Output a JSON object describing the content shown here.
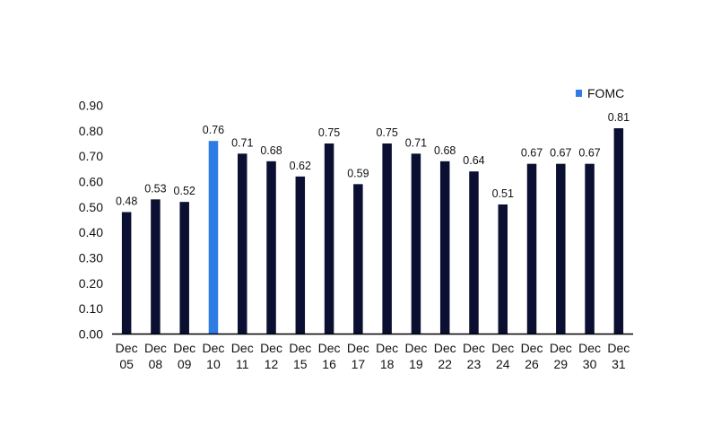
{
  "chart_data": {
    "type": "bar",
    "title": "",
    "xlabel": "",
    "ylabel": "",
    "ylim": [
      0,
      0.9
    ],
    "yticks": [
      0.0,
      0.1,
      0.2,
      0.3,
      0.4,
      0.5,
      0.6,
      0.7,
      0.8,
      0.9
    ],
    "ytick_labels": [
      "0.00",
      "0.10",
      "0.20",
      "0.30",
      "0.40",
      "0.50",
      "0.60",
      "0.70",
      "0.80",
      "0.90"
    ],
    "grid": false,
    "legend_position": "top-right",
    "categories": [
      [
        "Dec",
        "05"
      ],
      [
        "Dec",
        "08"
      ],
      [
        "Dec",
        "09"
      ],
      [
        "Dec",
        "10"
      ],
      [
        "Dec",
        "11"
      ],
      [
        "Dec",
        "12"
      ],
      [
        "Dec",
        "15"
      ],
      [
        "Dec",
        "16"
      ],
      [
        "Dec",
        "17"
      ],
      [
        "Dec",
        "18"
      ],
      [
        "Dec",
        "19"
      ],
      [
        "Dec",
        "22"
      ],
      [
        "Dec",
        "23"
      ],
      [
        "Dec",
        "24"
      ],
      [
        "Dec",
        "26"
      ],
      [
        "Dec",
        "29"
      ],
      [
        "Dec",
        "30"
      ],
      [
        "Dec",
        "31"
      ]
    ],
    "values": [
      0.48,
      0.53,
      0.52,
      0.76,
      0.71,
      0.68,
      0.62,
      0.75,
      0.59,
      0.75,
      0.71,
      0.68,
      0.64,
      0.51,
      0.67,
      0.67,
      0.67,
      0.81
    ],
    "value_labels": [
      "0.48",
      "0.53",
      "0.52",
      "0.76",
      "0.71",
      "0.68",
      "0.62",
      "0.75",
      "0.59",
      "0.75",
      "0.71",
      "0.68",
      "0.64",
      "0.51",
      "0.67",
      "0.67",
      "0.67",
      "0.81"
    ],
    "highlight_index": 3,
    "legend": [
      {
        "label": "FOMC",
        "color": "#2f7be5"
      }
    ],
    "colors": {
      "bar": "#0b1033",
      "highlight": "#2f7be5",
      "axis": "#000000",
      "text": "#111111"
    }
  }
}
